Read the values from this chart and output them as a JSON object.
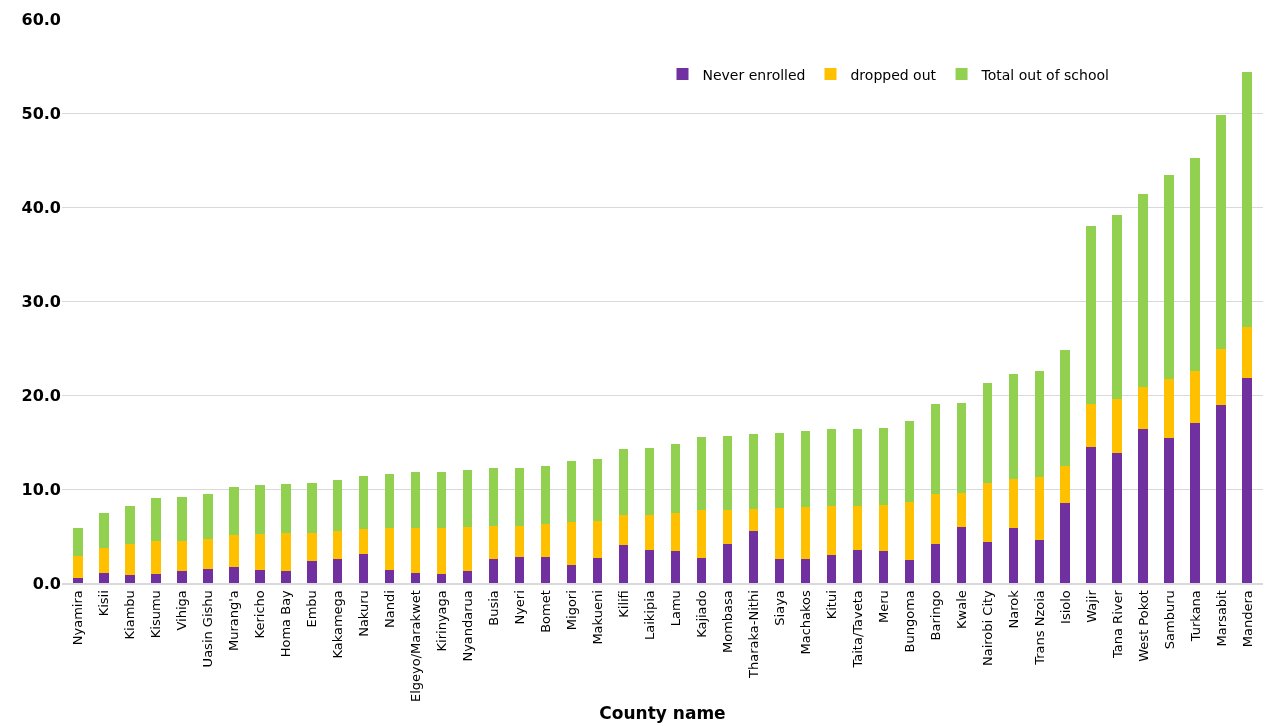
{
  "chart_data": {
    "type": "bar",
    "stacked": true,
    "xlabel": "County name",
    "categories": [
      "Nyamira",
      "Kisii",
      "Kiambu",
      "Kisumu",
      "Vihiga",
      "Uasin Gishu",
      "Murang'a",
      "Kericho",
      "Homa Bay",
      "Embu",
      "Kakamega",
      "Nakuru",
      "Nandi",
      "Elgeyo/Marakwet",
      "Kirinyaga",
      "Nyandarua",
      "Busia",
      "Nyeri",
      "Bomet",
      "Migori",
      "Makueni",
      "Kilifi",
      "Laikipia",
      "Lamu",
      "Kajiado",
      "Mombasa",
      "Tharaka-Nithi",
      "Siaya",
      "Machakos",
      "Kitui",
      "Taita/Taveta",
      "Meru",
      "Bungoma",
      "Baringo",
      "Kwale",
      "Nairobi City",
      "Narok",
      "Trans Nzoia",
      "Isiolo",
      "Wajir",
      "Tana River",
      "West Pokot",
      "Samburu",
      "Turkana",
      "Marsabit",
      "Mandera"
    ],
    "series": [
      {
        "name": "Never enrolled",
        "color": "#7030a0",
        "values": [
          0.5,
          1.1,
          0.9,
          1.0,
          1.3,
          1.5,
          1.7,
          1.4,
          1.3,
          2.3,
          2.6,
          3.1,
          1.4,
          1.1,
          1.0,
          1.3,
          2.6,
          2.8,
          2.8,
          1.9,
          2.7,
          4.0,
          3.5,
          3.4,
          2.7,
          4.1,
          5.5,
          2.6,
          2.6,
          3.0,
          3.5,
          3.4,
          2.4,
          4.2,
          6.0,
          4.4,
          5.9,
          4.6,
          8.5,
          14.5,
          13.8,
          16.4,
          15.4,
          17.0,
          18.9,
          21.8
        ]
      },
      {
        "name": "dropped out",
        "color": "#ffc000",
        "values": [
          2.4,
          2.6,
          3.2,
          3.5,
          3.2,
          3.2,
          3.4,
          3.8,
          4.0,
          3.0,
          2.9,
          2.6,
          4.4,
          4.8,
          4.9,
          4.7,
          3.5,
          3.3,
          3.5,
          4.6,
          3.9,
          3.2,
          3.7,
          4.0,
          5.1,
          3.7,
          2.4,
          5.4,
          5.5,
          5.2,
          4.7,
          4.9,
          6.2,
          5.3,
          3.6,
          6.2,
          5.2,
          6.7,
          3.9,
          4.5,
          5.8,
          4.4,
          6.3,
          5.6,
          6.0,
          5.4
        ]
      },
      {
        "name": "Total out of school",
        "color": "#92d050",
        "values": [
          2.9,
          3.7,
          4.1,
          4.5,
          4.6,
          4.8,
          5.1,
          5.2,
          5.2,
          5.3,
          5.5,
          5.7,
          5.8,
          5.9,
          5.9,
          6.0,
          6.1,
          6.1,
          6.2,
          6.5,
          6.6,
          7.1,
          7.2,
          7.4,
          7.7,
          7.8,
          7.9,
          8.0,
          8.1,
          8.2,
          8.2,
          8.2,
          8.6,
          9.5,
          9.6,
          10.7,
          11.1,
          11.3,
          12.4,
          19.0,
          19.6,
          20.6,
          21.7,
          22.6,
          24.9,
          27.2
        ]
      }
    ],
    "ylim": [
      0,
      60
    ],
    "yticks": [
      {
        "value": 0,
        "label": "0.0"
      },
      {
        "value": 10,
        "label": "10.0"
      },
      {
        "value": 20,
        "label": "20.0"
      },
      {
        "value": 30,
        "label": "30.0"
      },
      {
        "value": 40,
        "label": "40.0"
      },
      {
        "value": 50,
        "label": "50.0"
      },
      {
        "value": 60,
        "label": "60.0"
      }
    ],
    "grid": "y",
    "legend": "top"
  }
}
